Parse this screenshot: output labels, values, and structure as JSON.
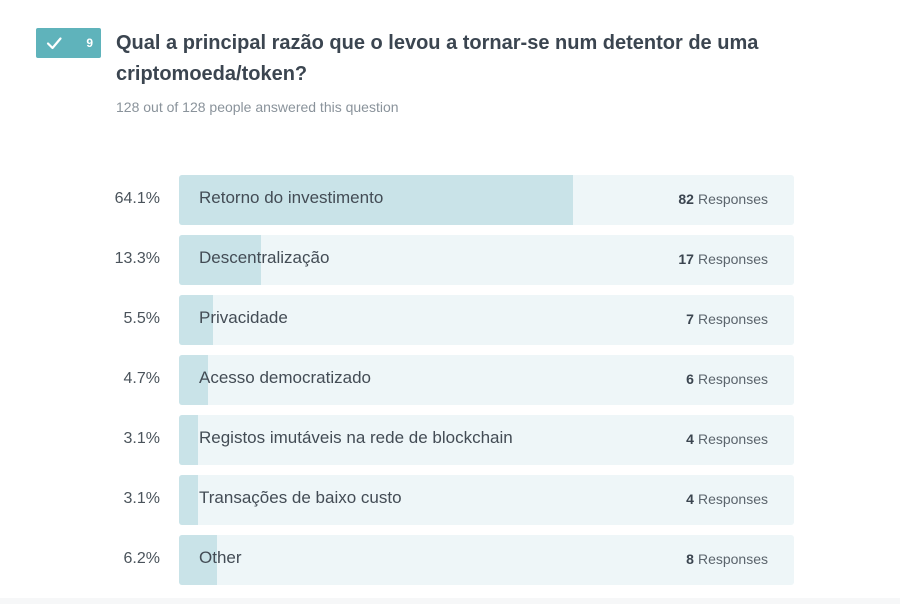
{
  "question": {
    "number": "9",
    "title": "Qual a principal razão que o levou a tornar-se num detentor de uma criptomoeda/token?",
    "subtitle": "128 out of 128 people answered this question",
    "answered_icon": "checkmark-icon"
  },
  "responses_word": "Responses",
  "colors": {
    "badge": "#5fb3bb",
    "track": "#eef6f8",
    "fill": "#c9e3e8"
  },
  "chart_data": {
    "type": "bar",
    "orientation": "horizontal",
    "categories": [
      "Retorno do investimento",
      "Descentralização",
      "Privacidade",
      "Acesso democratizado",
      "Registos imutáveis na rede de blockchain",
      "Transações de baixo custo",
      "Other"
    ],
    "percent_labels": [
      "64.1%",
      "13.3%",
      "5.5%",
      "4.7%",
      "3.1%",
      "3.1%",
      "6.2%"
    ],
    "values": [
      64.1,
      13.3,
      5.5,
      4.7,
      3.1,
      3.1,
      6.2
    ],
    "counts": [
      "82",
      "17",
      "7",
      "6",
      "4",
      "4",
      "8"
    ],
    "xlim": [
      0,
      100
    ]
  }
}
